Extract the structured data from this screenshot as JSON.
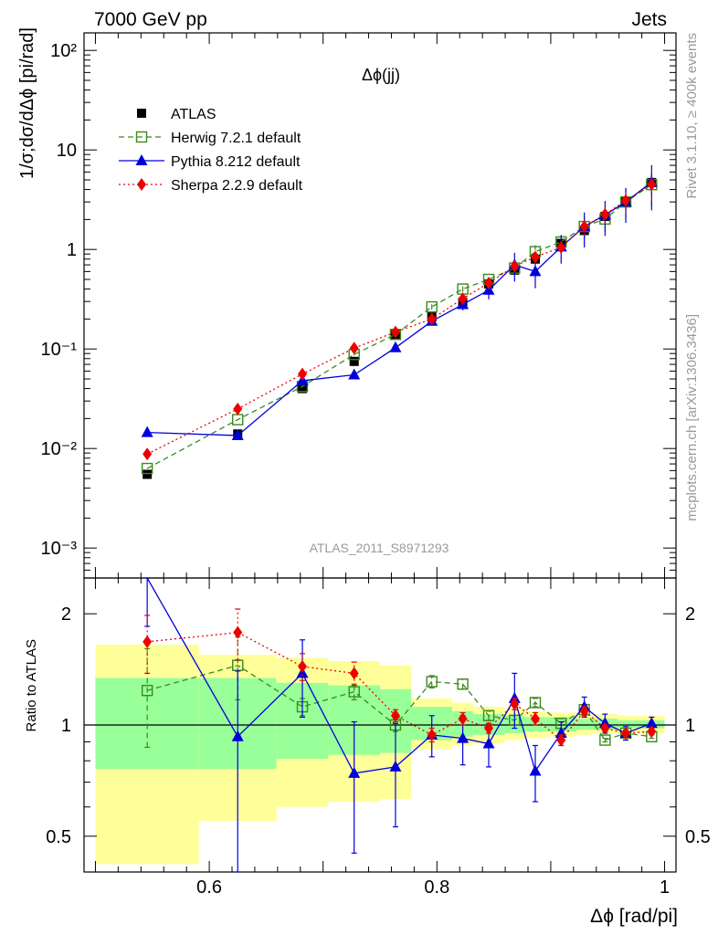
{
  "header": {
    "left": "7000 GeV pp",
    "right": "Jets"
  },
  "side_labels": {
    "rivet": "Rivet 3.1.10, ≥ 400k events",
    "source": "mcplots.cern.ch [arXiv:1306.3436]"
  },
  "analysis_id": "ATLAS_2011_S8971293",
  "chart_data": [
    {
      "type": "scatter",
      "panel": "main",
      "title": "Δϕ(jj)",
      "ylabel": "1/σ;dσ/dΔϕ [pi/rad]",
      "yscale": "log",
      "ylim": [
        0.0005,
        150
      ],
      "xlim": [
        0.49,
        1.01
      ],
      "ytick_labels": [
        "10⁻³",
        "10⁻²",
        "10⁻¹",
        "1",
        "10",
        "10²"
      ],
      "ytick_values": [
        0.001,
        0.01,
        0.1,
        1,
        10,
        100
      ],
      "legend_position": "top-left",
      "x": [
        0.5455,
        0.625,
        0.6818,
        0.7273,
        0.7636,
        0.7955,
        0.8227,
        0.8455,
        0.8682,
        0.8864,
        0.9091,
        0.9295,
        0.9477,
        0.9659,
        0.9886
      ],
      "series": [
        {
          "name": "ATLAS",
          "color": "#000000",
          "marker": "square-filled",
          "values": [
            0.0055,
            0.014,
            0.04,
            0.075,
            0.14,
            0.21,
            0.295,
            0.45,
            0.62,
            0.8,
            1.15,
            1.55,
            2.15,
            3.05,
            4.7
          ]
        },
        {
          "name": "Herwig 7.2.1 default",
          "color": "#3a8a1c",
          "marker": "square-open",
          "line": "dashed",
          "values": [
            0.0063,
            0.0195,
            0.042,
            0.088,
            0.14,
            0.265,
            0.4,
            0.5,
            0.65,
            0.95,
            1.19,
            1.7,
            2.02,
            3.0,
            4.48
          ]
        },
        {
          "name": "Pythia 8.212 default",
          "color": "#0000dd",
          "marker": "triangle-filled",
          "line": "solid",
          "values": [
            0.0145,
            0.0135,
            0.048,
            0.055,
            0.103,
            0.19,
            0.28,
            0.39,
            0.7,
            0.6,
            1.06,
            1.7,
            2.22,
            3.0,
            4.75
          ]
        },
        {
          "name": "Sherpa 2.2.9 default",
          "color": "#ee0000",
          "marker": "diamond-filled",
          "line": "dotted",
          "values": [
            0.0088,
            0.025,
            0.056,
            0.102,
            0.148,
            0.2,
            0.32,
            0.46,
            0.68,
            0.84,
            1.05,
            1.7,
            2.25,
            3.1,
            4.5
          ]
        }
      ],
      "yerr_low": {
        "Herwig 7.2.1 default": [
          0.0017,
          0.004,
          0.004,
          0.008,
          0.01,
          0.02,
          0.02,
          0.03,
          0.03,
          0.05,
          0.05,
          0.08,
          0.08,
          0.1,
          0.12
        ],
        "Pythia 8.212 default": [
          0.007,
          0.008,
          0.013,
          0.02,
          0.03,
          0.03,
          0.04,
          0.06,
          0.1,
          0.1,
          0.1,
          0.12,
          0.12,
          0.12,
          0.15
        ],
        "Sherpa 2.2.9 default": [
          0.0025,
          0.004,
          0.006,
          0.008,
          0.008,
          0.015,
          0.02,
          0.02,
          0.04,
          0.04,
          0.04,
          0.06,
          0.06,
          0.08,
          0.1
        ]
      }
    },
    {
      "type": "scatter",
      "panel": "ratio",
      "xlabel": "Δϕ [rad/pi]",
      "ylabel": "Ratio to ATLAS",
      "yscale": "log",
      "ylim": [
        0.4,
        2.5
      ],
      "xlim": [
        0.49,
        1.01
      ],
      "xtick_values": [
        0.6,
        0.8,
        1
      ],
      "xtick_labels": [
        "0.6",
        "0.8",
        "1"
      ],
      "ytick_values": [
        0.5,
        1,
        2
      ],
      "ytick_labels": [
        "0.5",
        "1",
        "2"
      ],
      "band_edges": [
        0.5,
        0.5909,
        0.6591,
        0.7045,
        0.75,
        0.7773,
        0.8136,
        0.8318,
        0.8591,
        0.8773,
        0.8955,
        0.9227,
        0.9364,
        0.9591,
        0.9727,
        1.0
      ],
      "band_inner": {
        "low": [
          0.76,
          0.76,
          0.81,
          0.83,
          0.84,
          0.91,
          0.93,
          0.94,
          0.95,
          0.96,
          0.96,
          0.97,
          0.97,
          0.98,
          0.98
        ],
        "high": [
          1.34,
          1.34,
          1.3,
          1.28,
          1.25,
          1.12,
          1.09,
          1.07,
          1.06,
          1.05,
          1.05,
          1.04,
          1.04,
          1.03,
          1.03
        ]
      },
      "band_outer": {
        "low": [
          0.42,
          0.55,
          0.6,
          0.62,
          0.63,
          0.86,
          0.88,
          0.89,
          0.91,
          0.92,
          0.93,
          0.94,
          0.95,
          0.95,
          0.95
        ],
        "high": [
          1.65,
          1.55,
          1.52,
          1.49,
          1.45,
          1.18,
          1.15,
          1.12,
          1.11,
          1.09,
          1.08,
          1.07,
          1.07,
          1.06,
          1.06
        ]
      },
      "x": [
        0.5455,
        0.625,
        0.6818,
        0.7273,
        0.7636,
        0.7955,
        0.8227,
        0.8455,
        0.8682,
        0.8864,
        0.9091,
        0.9295,
        0.9477,
        0.9659,
        0.9886
      ],
      "series": [
        {
          "name": "Herwig 7.2.1 default",
          "color": "#3a8a1c",
          "marker": "square-open",
          "line": "dashed",
          "values": [
            1.24,
            1.45,
            1.12,
            1.23,
            1.0,
            1.31,
            1.29,
            1.06,
            1.03,
            1.15,
            1.01,
            1.1,
            0.91,
            0.95,
            0.93
          ]
        },
        {
          "name": "Pythia 8.212 default",
          "color": "#0000dd",
          "marker": "triangle-filled",
          "line": "solid",
          "values": [
            2.6,
            0.93,
            1.38,
            0.74,
            0.77,
            0.94,
            0.92,
            0.89,
            1.18,
            0.75,
            0.95,
            1.12,
            1.01,
            0.95,
            1.01
          ]
        },
        {
          "name": "Sherpa 2.2.9 default",
          "color": "#ee0000",
          "marker": "diamond-filled",
          "line": "dotted",
          "values": [
            1.68,
            1.78,
            1.44,
            1.38,
            1.06,
            0.94,
            1.04,
            0.98,
            1.14,
            1.04,
            0.91,
            1.09,
            0.98,
            0.95,
            0.96
          ]
        }
      ],
      "yerr": {
        "Herwig 7.2.1 default": [
          [
            0.87,
            1.61
          ],
          [
            1.17,
            1.73
          ],
          [
            1.06,
            1.18
          ],
          [
            1.17,
            1.29
          ],
          [
            0.96,
            1.04
          ],
          [
            1.26,
            1.36
          ],
          [
            1.25,
            1.33
          ],
          [
            1.03,
            1.09
          ],
          [
            1.0,
            1.06
          ],
          [
            1.12,
            1.18
          ],
          [
            0.98,
            1.04
          ],
          [
            1.08,
            1.12
          ],
          [
            0.9,
            0.92
          ],
          [
            0.94,
            0.96
          ],
          [
            0.92,
            0.94
          ]
        ],
        "Pythia 8.212 default": [
          [
            1.85,
            2.6
          ],
          [
            0.38,
            1.4
          ],
          [
            1.05,
            1.7
          ],
          [
            0.45,
            1.02
          ],
          [
            0.53,
            1.01
          ],
          [
            0.82,
            1.06
          ],
          [
            0.78,
            1.06
          ],
          [
            0.77,
            1.01
          ],
          [
            0.98,
            1.38
          ],
          [
            0.62,
            0.88
          ],
          [
            0.88,
            1.02
          ],
          [
            1.05,
            1.19
          ],
          [
            0.95,
            1.07
          ],
          [
            0.91,
            0.99
          ],
          [
            0.97,
            1.05
          ]
        ],
        "Sherpa 2.2.9 default": [
          [
            1.38,
            1.98
          ],
          [
            1.5,
            2.06
          ],
          [
            1.32,
            1.56
          ],
          [
            1.28,
            1.48
          ],
          [
            1.02,
            1.1
          ],
          [
            0.9,
            0.98
          ],
          [
            1.0,
            1.08
          ],
          [
            0.95,
            1.01
          ],
          [
            1.1,
            1.18
          ],
          [
            1.0,
            1.08
          ],
          [
            0.88,
            0.94
          ],
          [
            1.06,
            1.12
          ],
          [
            0.96,
            1.0
          ],
          [
            0.93,
            0.97
          ],
          [
            0.94,
            0.98
          ]
        ]
      }
    }
  ]
}
